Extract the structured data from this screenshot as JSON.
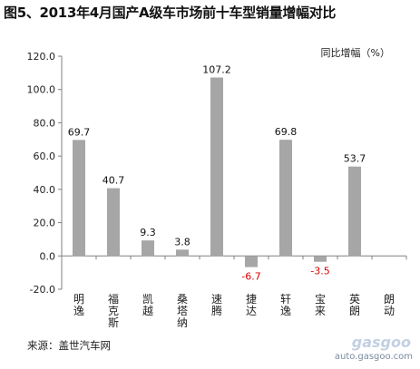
{
  "title": "图5、2013年4月国产A级车市场前十车型销量增幅对比",
  "source": "来源：盖世汽车网",
  "watermark": {
    "logo": "gasgoo",
    "url": "auto.gasgoo.com"
  },
  "colors": {
    "bar": "#a6a6a6",
    "positive_label": "#111111",
    "negative_label": "#e00000",
    "axis": "#808080"
  },
  "chart_data": {
    "type": "bar",
    "title": "图5、2013年4月国产A级车市场前十车型销量增幅对比",
    "legend_label": "同比增幅（%）",
    "legend_position": "top-right",
    "categories": [
      "明逸",
      "福克斯",
      "凯越",
      "桑塔纳",
      "速腾",
      "捷达",
      "轩逸",
      "宝来",
      "英朗",
      "朗动"
    ],
    "values": [
      69.7,
      40.7,
      9.3,
      3.8,
      107.2,
      -6.7,
      69.8,
      -3.5,
      53.7,
      null
    ],
    "value_labels": [
      "69.7",
      "40.7",
      "9.3",
      "3.8",
      "107.2",
      "-6.7",
      "69.8",
      "-3.5",
      "53.7",
      ""
    ],
    "ylim": [
      -20,
      120
    ],
    "yticks": [
      "-20.0",
      "0.0",
      "20.0",
      "40.0",
      "60.0",
      "80.0",
      "100.0",
      "120.0"
    ],
    "grid": false,
    "xlabel": "",
    "ylabel": ""
  }
}
